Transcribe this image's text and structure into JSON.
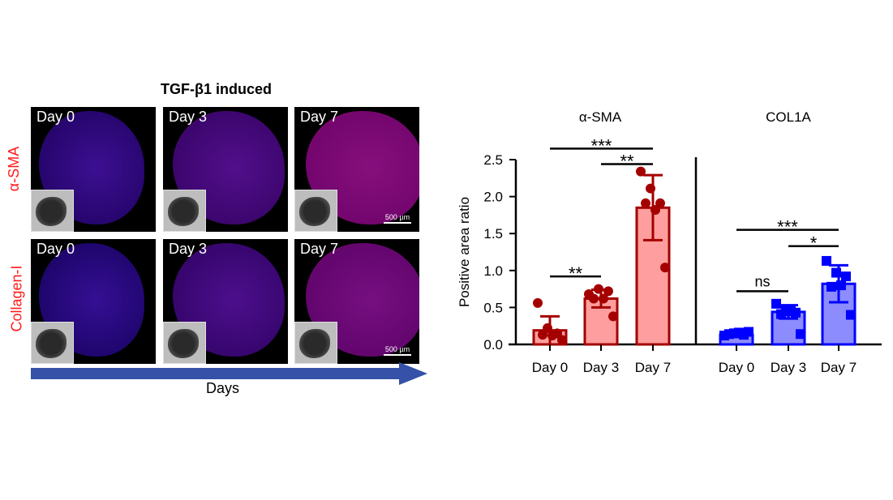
{
  "figure": {
    "title": "TGF-β1 induced",
    "row_labels": [
      "α-SMA",
      "Collagen-I"
    ],
    "panel_labels": [
      "Day 0",
      "Day 3",
      "Day 7"
    ],
    "scale_bar": "500 µm",
    "arrow_label": "Days"
  },
  "colors": {
    "red": "#a50000",
    "red_fill": "#ff9e9e",
    "blue": "#0000ff",
    "blue_fill": "#8c8cff",
    "label_red": "#ff1a1a",
    "arrow": "#3552a8"
  },
  "chart_data": {
    "type": "bar",
    "ylabel": "Positive area ratio",
    "ylim": [
      0,
      2.5
    ],
    "yticks": [
      "0.0",
      "0.5",
      "1.0",
      "1.5",
      "2.0",
      "2.5"
    ],
    "groups": [
      {
        "title": "α-SMA",
        "color": "red",
        "categories": [
          "Day 0",
          "Day 3",
          "Day 7"
        ],
        "means": [
          0.19,
          0.62,
          1.85
        ],
        "sd": [
          0.19,
          0.12,
          0.44
        ],
        "points": [
          [
            0.56,
            0.22,
            0.15,
            0.13,
            0.12,
            0.06
          ],
          [
            0.68,
            0.75,
            0.72,
            0.62,
            0.62,
            0.38
          ],
          [
            2.34,
            2.11,
            1.91,
            1.91,
            1.82,
            1.04
          ]
        ],
        "marker": "circle",
        "significance": [
          {
            "from": 0,
            "to": 2,
            "label": "***",
            "level": 2.65
          },
          {
            "from": 1,
            "to": 2,
            "label": "**",
            "level": 2.44
          },
          {
            "from": 0,
            "to": 1,
            "label": "**",
            "level": 0.92
          }
        ]
      },
      {
        "title": "COL1A",
        "color": "blue",
        "categories": [
          "Day 0",
          "Day 3",
          "Day 7"
        ],
        "means": [
          0.13,
          0.44,
          0.82
        ],
        "sd": [
          0.03,
          0.09,
          0.25
        ],
        "points": [
          [
            0.12,
            0.15,
            0.13,
            0.14,
            0.16,
            0.17
          ],
          [
            0.55,
            0.45,
            0.43,
            0.41,
            0.47,
            0.14
          ],
          [
            1.13,
            0.97,
            0.92,
            0.78,
            0.8,
            0.4
          ]
        ],
        "marker": "square",
        "significance": [
          {
            "from": 0,
            "to": 2,
            "label": "***",
            "level": 1.55
          },
          {
            "from": 1,
            "to": 2,
            "label": "*",
            "level": 1.33
          },
          {
            "from": 0,
            "to": 1,
            "label": "ns",
            "level": 0.72
          }
        ]
      }
    ]
  }
}
